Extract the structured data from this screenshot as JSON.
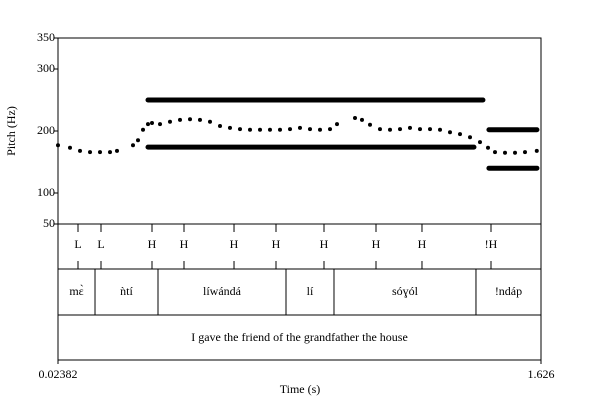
{
  "chart_data": {
    "type": "scatter",
    "x_label": "Time (s)",
    "y_label": "Pitch (Hz)",
    "xlim": [
      0.02382,
      1.626
    ],
    "xticks": [
      0.02382,
      1.626
    ],
    "ylim": [
      50,
      350
    ],
    "yticks": [
      50,
      100,
      200,
      300,
      350
    ],
    "color": "#000000",
    "x": [
      0.0238,
      0.0636,
      0.0968,
      0.13,
      0.1631,
      0.1963,
      0.2195,
      0.2726,
      0.2892,
      0.3058,
      0.3223,
      0.3356,
      0.3622,
      0.3953,
      0.4285,
      0.4617,
      0.4948,
      0.528,
      0.5612,
      0.5943,
      0.6275,
      0.6607,
      0.6939,
      0.727,
      0.7602,
      0.7934,
      0.8265,
      0.8597,
      0.8929,
      0.9261,
      0.9493,
      1.009,
      1.0322,
      1.0588,
      1.0919,
      1.1251,
      1.1583,
      1.1914,
      1.2246,
      1.2578,
      1.291,
      1.3241,
      1.3573,
      1.3905,
      1.4236,
      1.4502,
      1.4734,
      1.5066,
      1.5398,
      1.5729,
      1.612
    ],
    "values": [
      177,
      173,
      168,
      166,
      166,
      166,
      168,
      177,
      185,
      202,
      211,
      213,
      211,
      215,
      218,
      219,
      218,
      215,
      208,
      205,
      203,
      202,
      202,
      202,
      202,
      203,
      205,
      203,
      202,
      203,
      211,
      221,
      218,
      210,
      203,
      202,
      203,
      205,
      203,
      203,
      202,
      198,
      195,
      190,
      182,
      173,
      166,
      165,
      165,
      166,
      168
    ],
    "target_lines": [
      {
        "x": [
          0.3224,
          1.4334
        ],
        "y": 250
      },
      {
        "x": [
          0.3224,
          1.4036
        ],
        "y": 174
      },
      {
        "x": [
          1.4533,
          1.6125
        ],
        "y": 202
      },
      {
        "x": [
          1.4533,
          1.6125
        ],
        "y": 140
      }
    ],
    "tone_tier": {
      "times": [
        0.0902,
        0.1665,
        0.3356,
        0.4418,
        0.6077,
        0.747,
        0.9062,
        1.0787,
        1.2312,
        1.4601
      ],
      "labels": [
        "L",
        "L",
        "H",
        "H",
        "H",
        "H",
        "H",
        "H",
        "H",
        "!H"
      ]
    },
    "word_tier": {
      "boundaries": [
        0.1466,
        0.3555,
        0.7801,
        0.9393,
        1.4103
      ],
      "labels": [
        "mɛ̀",
        "ǹtí",
        "líwándá",
        "lí",
        "sóɣól",
        "!ndáp"
      ]
    },
    "sentence_tier": "I gave the friend of the grandfather the house"
  }
}
